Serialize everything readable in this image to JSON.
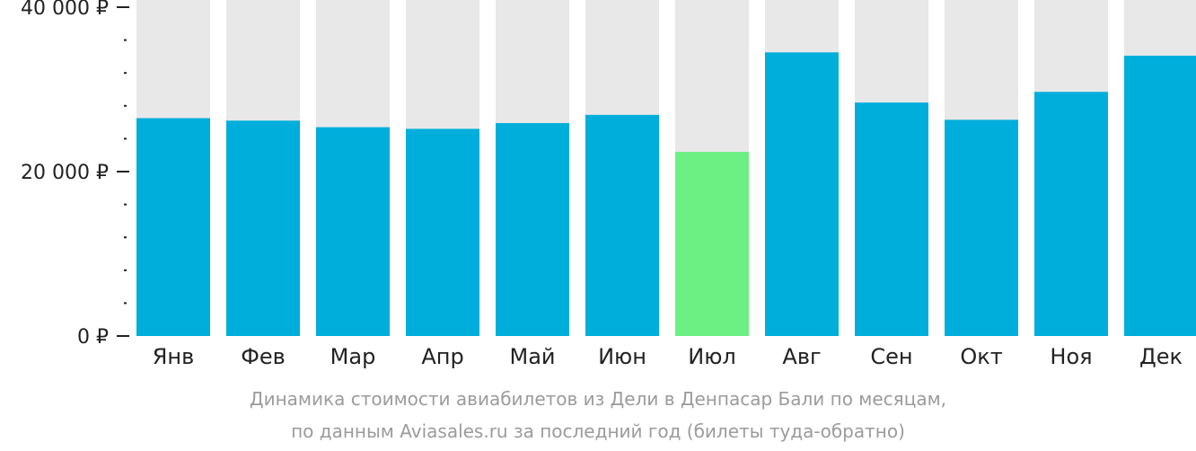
{
  "chart_data": {
    "type": "bar",
    "categories": [
      "Янв",
      "Фев",
      "Мар",
      "Апр",
      "Май",
      "Июн",
      "Июл",
      "Авг",
      "Сен",
      "Окт",
      "Ноя",
      "Дек"
    ],
    "values": [
      26500,
      26200,
      25400,
      25200,
      25900,
      26900,
      22400,
      34500,
      28400,
      26300,
      29700,
      34100
    ],
    "highlight_index": 6,
    "ylim": [
      0,
      40000
    ],
    "y_ticks": [
      {
        "value": 0,
        "label": "0 ₽"
      },
      {
        "value": 20000,
        "label": "20 000 ₽"
      },
      {
        "value": 40000,
        "label": "40 000 ₽"
      }
    ],
    "minor_tick_step": 4000,
    "colors": {
      "bar": "#00aedb",
      "highlight": "#6cf083",
      "background_bar": "#e8e8e8"
    },
    "title": "",
    "xlabel": "",
    "ylabel": ""
  },
  "caption": {
    "line1": "Динамика стоимости авиабилетов из Дели в Денпасар Бали по месяцам,",
    "line2": "по данным Aviasales.ru за последний год (билеты туда-обратно)"
  }
}
